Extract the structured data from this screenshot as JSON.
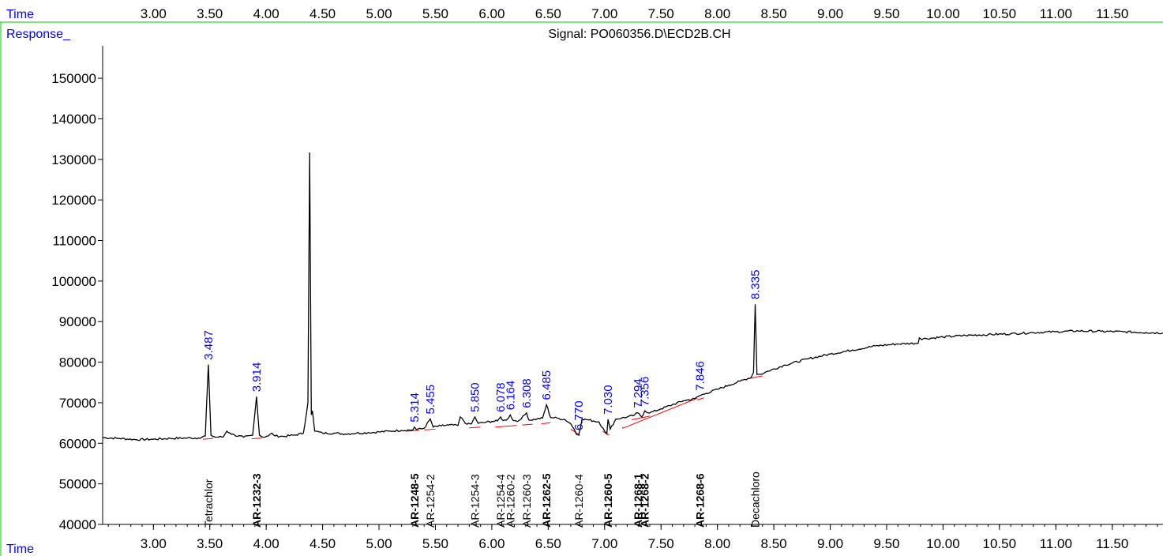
{
  "chart_data": {
    "type": "line",
    "title": "Signal: PO060356.D\\ECD2B.CH",
    "xlabel": "Time",
    "ylabel": "Response_",
    "xlim": [
      2.55,
      11.95
    ],
    "ylim": [
      40000,
      158000
    ],
    "x_ticks": [
      "3.00",
      "3.50",
      "4.00",
      "4.50",
      "5.00",
      "5.50",
      "6.00",
      "6.50",
      "7.00",
      "7.50",
      "8.00",
      "8.50",
      "9.00",
      "9.50",
      "10.00",
      "10.50",
      "11.00",
      "11.50"
    ],
    "y_ticks": [
      "40000",
      "50000",
      "60000",
      "70000",
      "80000",
      "90000",
      "100000",
      "110000",
      "120000",
      "130000",
      "140000",
      "150000"
    ],
    "colors": {
      "trace": "#000000",
      "baseline": "#ff0000",
      "peak_label": "#0000ff",
      "compound_label": "#000000",
      "frame": "#00cc00",
      "axis_text_blue": "#0000ff"
    },
    "series": [
      {
        "values_x": [
          2.55,
          2.7,
          2.85,
          3.0,
          3.15,
          3.3,
          3.4,
          3.46,
          3.487,
          3.51,
          3.55,
          3.62,
          3.65,
          3.68,
          3.72,
          3.8,
          3.88,
          3.914,
          3.94,
          3.98,
          4.02,
          4.05,
          4.08,
          4.15,
          4.25,
          4.33,
          4.37,
          4.385,
          4.4,
          4.41,
          4.43,
          4.5,
          4.6,
          4.7,
          4.8,
          4.9,
          5.0,
          5.1,
          5.2,
          5.3,
          5.314,
          5.33,
          5.4,
          5.455,
          5.48,
          5.55,
          5.62,
          5.7,
          5.72,
          5.78,
          5.82,
          5.85,
          5.88,
          5.95,
          6.0,
          6.05,
          6.078,
          6.1,
          6.13,
          6.164,
          6.19,
          6.24,
          6.26,
          6.308,
          6.33,
          6.4,
          6.45,
          6.485,
          6.52,
          6.58,
          6.65,
          6.7,
          6.73,
          6.75,
          6.77,
          6.8,
          6.85,
          6.9,
          6.95,
          7.0,
          7.02,
          7.03,
          7.05,
          7.1,
          7.15,
          7.2,
          7.25,
          7.294,
          7.33,
          7.356,
          7.4,
          7.5,
          7.6,
          7.7,
          7.8,
          7.846,
          7.9,
          8.0,
          8.1,
          8.2,
          8.3,
          8.32,
          8.335,
          8.35,
          8.38,
          8.45,
          8.6,
          8.8,
          9.0,
          9.2,
          9.4,
          9.6,
          9.78,
          9.79,
          9.8,
          9.85,
          10.0,
          10.2,
          10.4,
          10.6,
          10.8,
          11.0,
          11.2,
          11.4,
          11.6,
          11.8,
          11.95
        ],
        "values_y": [
          61400,
          61200,
          60900,
          61000,
          61200,
          61300,
          61300,
          61800,
          79400,
          62000,
          61500,
          61600,
          63000,
          62500,
          62000,
          61500,
          62000,
          71500,
          62000,
          61500,
          61800,
          62500,
          61800,
          61700,
          62000,
          62500,
          70000,
          131700,
          67000,
          68000,
          63000,
          62500,
          62500,
          62300,
          62500,
          62600,
          62800,
          63000,
          63200,
          63300,
          64000,
          63400,
          63700,
          66000,
          64000,
          64300,
          64500,
          64400,
          66500,
          64700,
          64800,
          66500,
          64900,
          65200,
          65400,
          65500,
          66500,
          65600,
          65700,
          67000,
          65600,
          65600,
          66000,
          67500,
          65700,
          66000,
          66200,
          69500,
          66400,
          66200,
          65800,
          64800,
          63500,
          62200,
          62000,
          66000,
          65800,
          65500,
          65300,
          63000,
          62300,
          65900,
          63500,
          66000,
          66200,
          66500,
          66800,
          67500,
          66500,
          68000,
          67500,
          68500,
          69500,
          70500,
          71000,
          71800,
          72300,
          73300,
          74300,
          75300,
          76300,
          77500,
          94300,
          77000,
          77000,
          77800,
          79300,
          80800,
          82000,
          83000,
          84000,
          84500,
          84700,
          86000,
          85800,
          85800,
          86200,
          86600,
          86800,
          87000,
          87300,
          87500,
          87700,
          87600,
          87500,
          87300,
          87200
        ]
      }
    ],
    "baselines": [
      [
        3.44,
        61000,
        3.53,
        61200
      ],
      [
        3.87,
        61100,
        3.96,
        61300
      ],
      [
        5.25,
        63000,
        5.36,
        63200
      ],
      [
        5.4,
        63300,
        5.5,
        63500
      ],
      [
        5.8,
        63800,
        5.9,
        64000
      ],
      [
        6.03,
        64000,
        6.12,
        64200
      ],
      [
        6.12,
        64200,
        6.22,
        64400
      ],
      [
        6.27,
        64500,
        6.36,
        64700
      ],
      [
        6.44,
        64800,
        6.52,
        65100
      ],
      [
        6.7,
        63500,
        6.78,
        62000
      ],
      [
        6.98,
        63000,
        7.04,
        62000
      ],
      [
        7.16,
        64000,
        7.16,
        63700
      ],
      [
        7.16,
        63700,
        7.82,
        71100
      ],
      [
        7.24,
        65800,
        7.4,
        66700
      ],
      [
        7.82,
        70700,
        7.88,
        71200
      ],
      [
        8.28,
        76000,
        8.4,
        76600
      ]
    ],
    "peak_labels": [
      {
        "rt": "3.487",
        "x": 3.487
      },
      {
        "rt": "3.914",
        "x": 3.914
      },
      {
        "rt": "5.314",
        "x": 5.314
      },
      {
        "rt": "5.455",
        "x": 5.455
      },
      {
        "rt": "5.850",
        "x": 5.85
      },
      {
        "rt": "6.078",
        "x": 6.078
      },
      {
        "rt": "6.164",
        "x": 6.164
      },
      {
        "rt": "6.308",
        "x": 6.308
      },
      {
        "rt": "6.485",
        "x": 6.485
      },
      {
        "rt": "6.770",
        "x": 6.77
      },
      {
        "rt": "7.030",
        "x": 7.03
      },
      {
        "rt": "7.294",
        "x": 7.294
      },
      {
        "rt": "7.356",
        "x": 7.356
      },
      {
        "rt": "7.846",
        "x": 7.846
      },
      {
        "rt": "8.335",
        "x": 8.335
      }
    ],
    "compound_labels": [
      {
        "name": "Tetrachlor",
        "x": 3.487,
        "bold": false
      },
      {
        "name": "AR-1232-3",
        "x": 3.914,
        "bold": true
      },
      {
        "name": "AR-1248-5",
        "x": 5.314,
        "bold": true
      },
      {
        "name": "AR-1254-2",
        "x": 5.455,
        "bold": false
      },
      {
        "name": "AR-1254-3",
        "x": 5.85,
        "bold": false
      },
      {
        "name": "AR-1254-4",
        "x": 6.078,
        "bold": false
      },
      {
        "name": "AR-1260-2",
        "x": 6.164,
        "bold": false
      },
      {
        "name": "AR-1260-3",
        "x": 6.308,
        "bold": false
      },
      {
        "name": "AR-1262-5",
        "x": 6.485,
        "bold": true
      },
      {
        "name": "AR-1260-4",
        "x": 6.77,
        "bold": false
      },
      {
        "name": "AR-1260-5",
        "x": 7.03,
        "bold": true
      },
      {
        "name": "AR-1268-1",
        "x": 7.294,
        "bold": true
      },
      {
        "name": "AR-1268-2",
        "x": 7.356,
        "bold": true
      },
      {
        "name": "AR-1268-6",
        "x": 7.846,
        "bold": true
      },
      {
        "name": "Decachloro",
        "x": 8.335,
        "bold": false
      }
    ]
  }
}
